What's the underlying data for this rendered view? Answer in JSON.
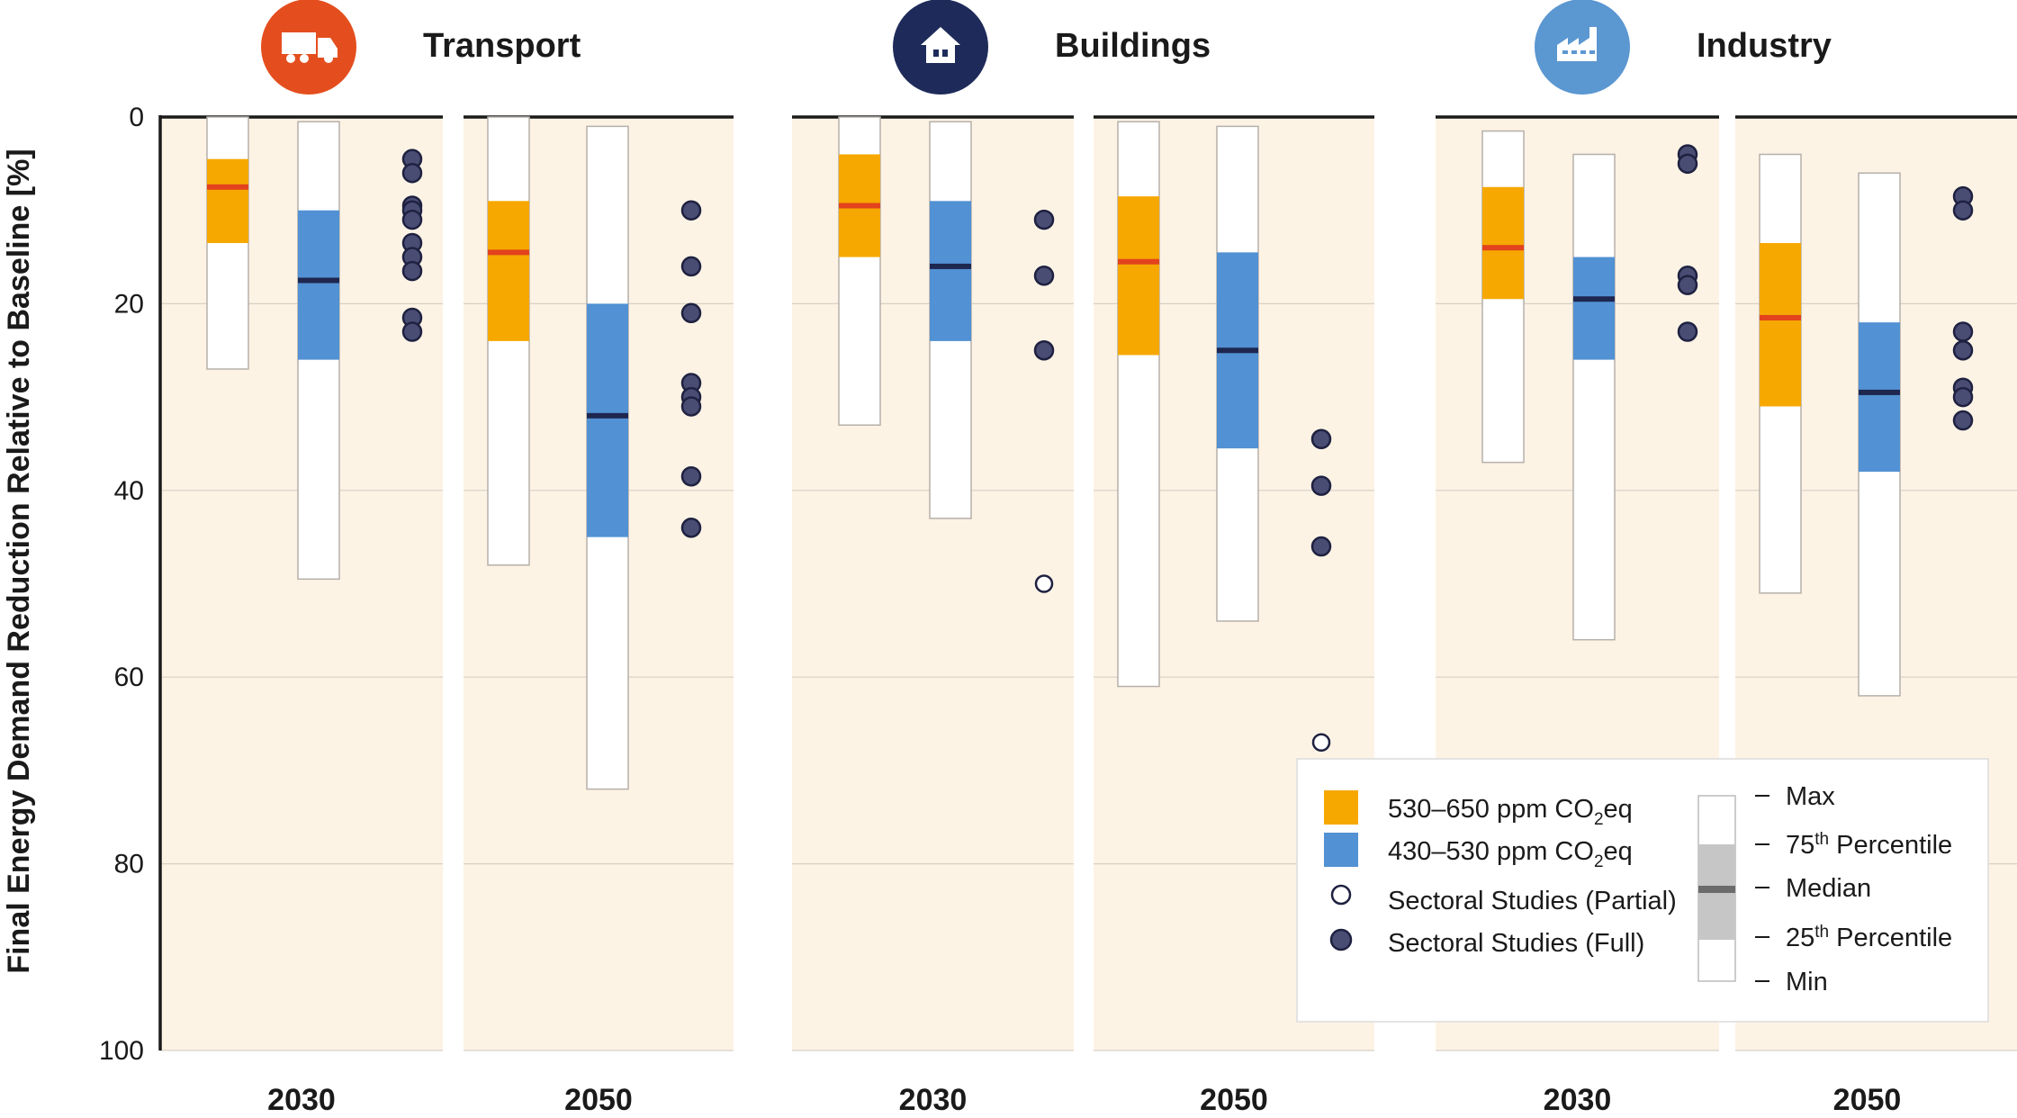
{
  "chart_data": {
    "type": "box",
    "ylabel": "Final Energy Demand Reduction Relative to Baseline [%]",
    "ylim": [
      0,
      100
    ],
    "y_inverted": true,
    "yticks": [
      "0",
      "20",
      "40",
      "60",
      "80",
      "100"
    ],
    "grid": true,
    "sectors": [
      {
        "name": "Transport",
        "icon": "truck-icon",
        "icon_color": "#e44e1e",
        "panels": [
          {
            "year": "2030",
            "boxes": [
              {
                "series": "530–650 ppm CO2eq",
                "min": 0,
                "p25": 4.5,
                "median": 7.5,
                "p75": 13.5,
                "max": 27
              },
              {
                "series": "430–530 ppm CO2eq",
                "min": 0.5,
                "p25": 10,
                "median": 17.5,
                "p75": 26,
                "max": 49.5
              }
            ],
            "sectoral_full": [
              4.5,
              6,
              9.5,
              10,
              11,
              13.5,
              15,
              16.5,
              21.5,
              23
            ],
            "sectoral_partial": []
          },
          {
            "year": "2050",
            "boxes": [
              {
                "series": "530–650 ppm CO2eq",
                "min": 0,
                "p25": 9,
                "median": 14.5,
                "p75": 24,
                "max": 48
              },
              {
                "series": "430–530 ppm CO2eq",
                "min": 1,
                "p25": 20,
                "median": 32,
                "p75": 45,
                "max": 72
              }
            ],
            "sectoral_full": [
              10,
              16,
              21,
              28.5,
              30,
              31,
              38.5,
              44
            ],
            "sectoral_partial": []
          }
        ]
      },
      {
        "name": "Buildings",
        "icon": "house-icon",
        "icon_color": "#1e2b5a",
        "panels": [
          {
            "year": "2030",
            "boxes": [
              {
                "series": "530–650 ppm CO2eq",
                "min": 0,
                "p25": 4,
                "median": 9.5,
                "p75": 15,
                "max": 33
              },
              {
                "series": "430–530 ppm CO2eq",
                "min": 0.5,
                "p25": 9,
                "median": 16,
                "p75": 24,
                "max": 43
              }
            ],
            "sectoral_full": [
              11,
              17,
              25
            ],
            "sectoral_partial": [
              50
            ]
          },
          {
            "year": "2050",
            "boxes": [
              {
                "series": "530–650 ppm CO2eq",
                "min": 0.5,
                "p25": 8.5,
                "median": 15.5,
                "p75": 25.5,
                "max": 61
              },
              {
                "series": "430–530 ppm CO2eq",
                "min": 1,
                "p25": 14.5,
                "median": 25,
                "p75": 35.5,
                "max": 54
              }
            ],
            "sectoral_full": [
              34.5,
              39.5,
              46
            ],
            "sectoral_partial": [
              67
            ]
          }
        ]
      },
      {
        "name": "Industry",
        "icon": "factory-icon",
        "icon_color": "#5b97d1",
        "panels": [
          {
            "year": "2030",
            "boxes": [
              {
                "series": "530–650 ppm CO2eq",
                "min": 1.5,
                "p25": 7.5,
                "median": 14,
                "p75": 19.5,
                "max": 37
              },
              {
                "series": "430–530 ppm CO2eq",
                "min": 4,
                "p25": 15,
                "median": 19.5,
                "p75": 26,
                "max": 56
              }
            ],
            "sectoral_full": [
              4,
              5,
              17,
              18,
              23
            ],
            "sectoral_partial": []
          },
          {
            "year": "2050",
            "boxes": [
              {
                "series": "530–650 ppm CO2eq",
                "min": 4,
                "p25": 13.5,
                "median": 21.5,
                "p75": 31,
                "max": 51
              },
              {
                "series": "430–530 ppm CO2eq",
                "min": 6,
                "p25": 22,
                "median": 29.5,
                "p75": 38,
                "max": 62
              }
            ],
            "sectoral_full": [
              8.5,
              10,
              23,
              25,
              29,
              30,
              32.5
            ],
            "sectoral_partial": []
          }
        ]
      }
    ],
    "legend": {
      "placement": "bottom-right",
      "series_items": [
        {
          "label_main": "530–650 ppm CO",
          "label_sub": "2",
          "label_tail": "eq",
          "color": "#f6a800",
          "kind": "swatch"
        },
        {
          "label_main": "430–530 ppm CO",
          "label_sub": "2",
          "label_tail": "eq",
          "color": "#5291d3",
          "kind": "swatch"
        },
        {
          "label_main": "Sectoral Studies (Partial)",
          "label_sub": "",
          "label_tail": "",
          "kind": "open-circle"
        },
        {
          "label_main": "Sectoral Studies (Full)",
          "label_sub": "",
          "label_tail": "",
          "kind": "filled-circle"
        }
      ],
      "key_items": [
        {
          "label_main": "Max",
          "label_sup": "",
          "label_tail": ""
        },
        {
          "label_main": "75",
          "label_sup": "th",
          "label_tail": " Percentile"
        },
        {
          "label_main": "Median",
          "label_sup": "",
          "label_tail": ""
        },
        {
          "label_main": "25",
          "label_sup": "th",
          "label_tail": " Percentile"
        },
        {
          "label_main": "Min",
          "label_sup": "",
          "label_tail": ""
        }
      ]
    },
    "colors": {
      "panel_bg": "#fdf3e5",
      "orange_box": "#f6a800",
      "orange_median": "#e2421d",
      "blue_box": "#5291d3",
      "blue_median": "#1e2750",
      "dot_fill": "#4a4d73",
      "dot_stroke": "#1e2140",
      "grid": "#d6d0c6",
      "axis": "#1a1a1a",
      "text": "#1a1a1a",
      "key_box": "#c6c6c6",
      "key_median": "#6b6b6b"
    }
  }
}
